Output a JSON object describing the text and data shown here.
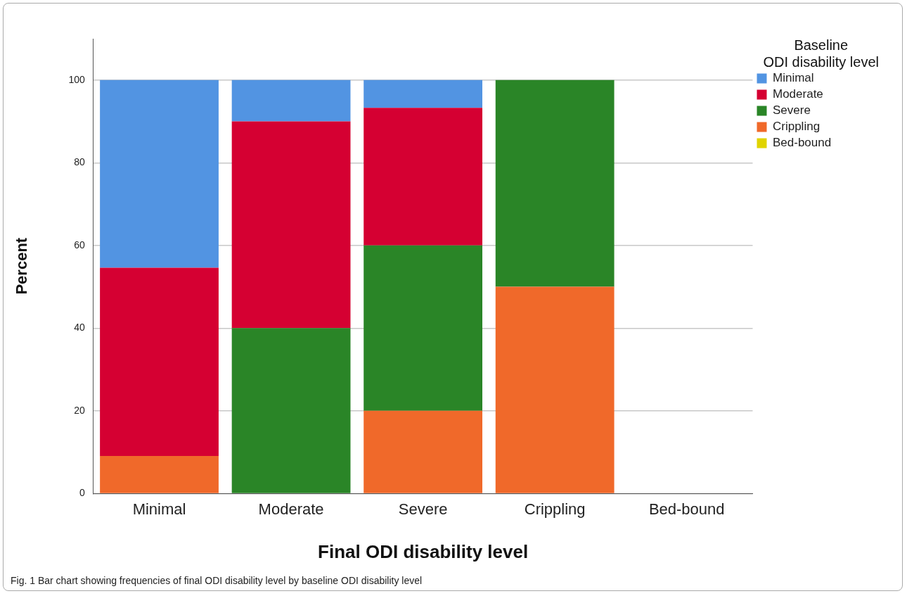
{
  "chart_data": {
    "type": "bar",
    "stacked": true,
    "xlabel": "Final ODI disability level",
    "ylabel": "Percent",
    "legend_title": "Baseline ODI disability level",
    "legend": "top right",
    "grid": "y",
    "categories": [
      "Minimal",
      "Moderate",
      "Severe",
      "Crippling",
      "Bed-bound"
    ],
    "ylim": [
      0,
      110
    ],
    "yticks": [
      0,
      20,
      40,
      60,
      80,
      100
    ],
    "series": [
      {
        "name": "Bed-bound",
        "color": "#e0d400",
        "values": [
          0,
          0,
          0,
          0,
          0
        ]
      },
      {
        "name": "Crippling",
        "color": "#f0692a",
        "values": [
          9.1,
          0,
          20,
          50,
          0
        ]
      },
      {
        "name": "Severe",
        "color": "#2a8527",
        "values": [
          0,
          40,
          40,
          50,
          0
        ]
      },
      {
        "name": "Moderate",
        "color": "#d50032",
        "values": [
          45.5,
          50,
          33.3,
          0,
          0
        ]
      },
      {
        "name": "Minimal",
        "color": "#5294e2",
        "values": [
          45.4,
          10,
          6.7,
          0,
          0
        ]
      }
    ],
    "annotations": [
      "Fig. 1 Bar chart showing frequencies of final ODI disability level by baseline ODI disability level"
    ]
  }
}
